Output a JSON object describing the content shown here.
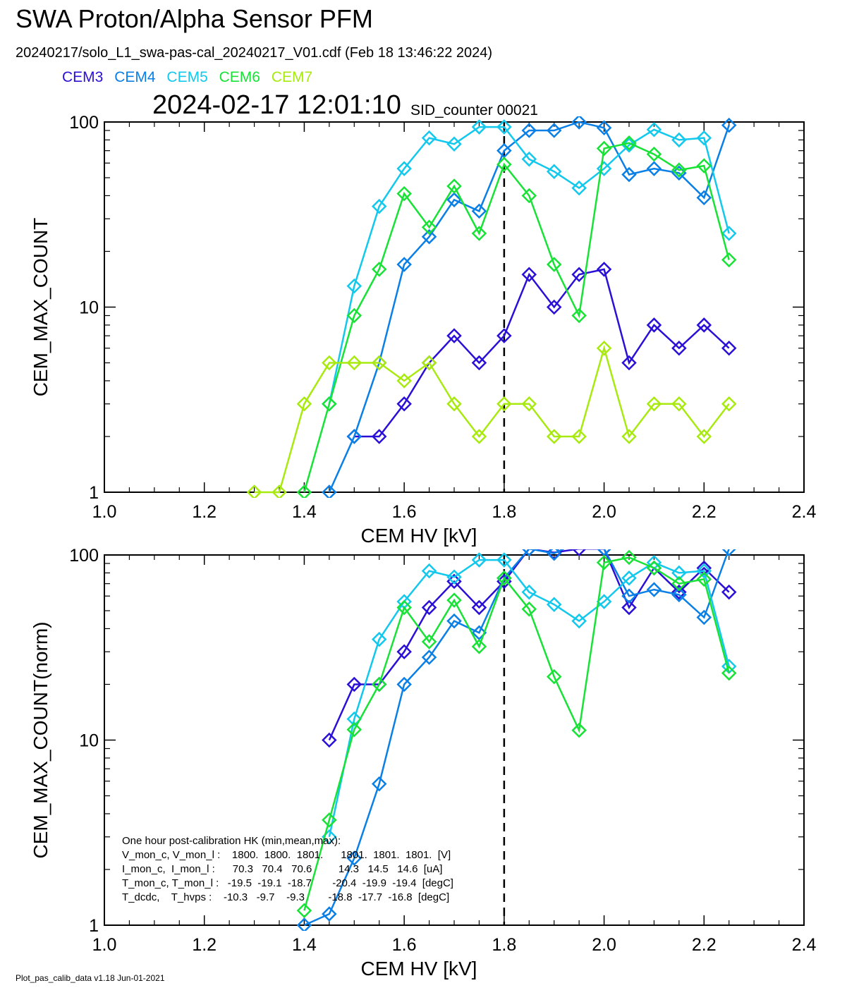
{
  "header": {
    "title": "SWA Proton/Alpha Sensor PFM",
    "subtitle": "20240217/solo_L1_swa-pas-cal_20240217_V01.cdf  (Feb 18 13:46:22 2024)",
    "datetime": "2024-02-17 12:01:10",
    "sid_counter": "SID_counter 00021"
  },
  "legend": [
    {
      "name": "CEM3",
      "color": "#2a10d6"
    },
    {
      "name": "CEM4",
      "color": "#0a7fe6"
    },
    {
      "name": "CEM5",
      "color": "#12c8ec"
    },
    {
      "name": "CEM6",
      "color": "#18e236"
    },
    {
      "name": "CEM7",
      "color": "#a8ea10"
    }
  ],
  "hk_box": {
    "line1": "One hour post-calibration HK (min,mean,max):",
    "line2": "V_mon_c, V_mon_l :    1800.  1800.  1801.      1801.  1801.  1801.  [V]",
    "line3": "I_mon_c,  I_mon_l :      70.3   70.4   70.6         14.3   14.5   14.6  [uA]",
    "line4": "T_mon_c, T_mon_l :   -19.5  -19.1  -18.7       -20.4  -19.9  -19.4  [degC]",
    "line5": "T_dcdc,    T_hvps :    -10.3   -9.7    -9.3        -18.8  -17.7  -16.8  [degC]"
  },
  "footer": "Plot_pas_calib_data v1.18 Jun-01-2021",
  "chart_data": [
    {
      "type": "line",
      "ylabel": "CEM_MAX_COUNT",
      "xlabel": "CEM HV [kV]",
      "xlim": [
        1.0,
        2.4
      ],
      "ylim": [
        1,
        100
      ],
      "yscale": "log",
      "xticks": [
        "1.0",
        "1.2",
        "1.4",
        "1.6",
        "1.8",
        "2.0",
        "2.2",
        "2.4"
      ],
      "yticks": [
        "1",
        "10",
        "100"
      ],
      "vline": 1.8,
      "series": [
        {
          "name": "CEM3",
          "color": "#2a10d6",
          "x": [
            1.5,
            1.55,
            1.6,
            1.65,
            1.7,
            1.75,
            1.8,
            1.85,
            1.9,
            1.95,
            2.0,
            2.05,
            2.1,
            2.15,
            2.2,
            2.25
          ],
          "values": [
            2,
            2,
            3,
            5,
            7,
            5,
            7,
            15,
            10,
            15,
            16,
            5,
            8,
            6,
            8,
            6
          ]
        },
        {
          "name": "CEM4",
          "color": "#0a7fe6",
          "x": [
            1.45,
            1.5,
            1.55,
            1.6,
            1.65,
            1.7,
            1.75,
            1.8,
            1.85,
            1.9,
            1.95,
            2.0,
            2.05,
            2.1,
            2.15,
            2.2,
            2.25
          ],
          "values": [
            1,
            2,
            5,
            17,
            24,
            38,
            33,
            70,
            90,
            90,
            100,
            93,
            52,
            56,
            53,
            39,
            96
          ]
        },
        {
          "name": "CEM5",
          "color": "#12c8ec",
          "x": [
            1.45,
            1.5,
            1.55,
            1.6,
            1.65,
            1.7,
            1.75,
            1.8,
            1.85,
            1.9,
            1.95,
            2.0,
            2.05,
            2.1,
            2.15,
            2.2,
            2.25
          ],
          "values": [
            3,
            13,
            35,
            56,
            82,
            76,
            94,
            94,
            63,
            54,
            44,
            56,
            75,
            91,
            80,
            82,
            25
          ]
        },
        {
          "name": "CEM6",
          "color": "#18e236",
          "x": [
            1.4,
            1.45,
            1.5,
            1.55,
            1.6,
            1.65,
            1.7,
            1.75,
            1.8,
            1.85,
            1.9,
            1.95,
            2.0,
            2.05,
            2.1,
            2.15,
            2.2,
            2.25
          ],
          "values": [
            1,
            3,
            9,
            16,
            41,
            27,
            45,
            25,
            59,
            40,
            17,
            9,
            72,
            77,
            67,
            55,
            58,
            18
          ]
        },
        {
          "name": "CEM7",
          "color": "#a8ea10",
          "x": [
            1.3,
            1.35,
            1.4,
            1.45,
            1.5,
            1.55,
            1.6,
            1.65,
            1.7,
            1.75,
            1.8,
            1.85,
            1.9,
            1.95,
            2.0,
            2.05,
            2.1,
            2.15,
            2.2,
            2.25
          ],
          "values": [
            1,
            1,
            3,
            5,
            5,
            5,
            4,
            5,
            3,
            2,
            3,
            3,
            2,
            2,
            6,
            2,
            3,
            3,
            2,
            3
          ]
        }
      ]
    },
    {
      "type": "line",
      "ylabel": "CEM_MAX_COUNT(norm)",
      "xlabel": "CEM HV [kV]",
      "xlim": [
        1.0,
        2.4
      ],
      "ylim": [
        1,
        100
      ],
      "yscale": "log",
      "xticks": [
        "1.0",
        "1.2",
        "1.4",
        "1.6",
        "1.8",
        "2.0",
        "2.2",
        "2.4"
      ],
      "yticks": [
        "1",
        "10",
        "100"
      ],
      "vline": 1.8,
      "series": [
        {
          "name": "CEM3",
          "color": "#2a10d6",
          "x": [
            1.45,
            1.5,
            1.55,
            1.6,
            1.65,
            1.7,
            1.75,
            1.8,
            1.85,
            1.9,
            1.95,
            2.0,
            2.05,
            2.1,
            2.15,
            2.2,
            2.25
          ],
          "values": [
            10,
            20,
            20,
            30,
            52,
            72,
            52,
            72,
            108,
            103,
            108,
            108,
            52,
            85,
            63,
            85,
            63
          ]
        },
        {
          "name": "CEM4",
          "color": "#0a7fe6",
          "x": [
            1.4,
            1.45,
            1.5,
            1.55,
            1.6,
            1.65,
            1.7,
            1.75,
            1.8,
            1.85,
            1.9,
            1.95,
            2.0,
            2.05,
            2.1,
            2.15,
            2.2,
            2.25
          ],
          "values": [
            1,
            1.15,
            2.3,
            5.8,
            20,
            28,
            44,
            38,
            75,
            108,
            102,
            118,
            108,
            60,
            65,
            61,
            46,
            108
          ]
        },
        {
          "name": "CEM5",
          "color": "#12c8ec",
          "x": [
            1.45,
            1.5,
            1.55,
            1.6,
            1.65,
            1.7,
            1.75,
            1.8,
            1.85,
            1.9,
            1.95,
            2.0,
            2.05,
            2.1,
            2.15,
            2.2,
            2.25
          ],
          "values": [
            3,
            13,
            35,
            56,
            82,
            76,
            94,
            94,
            63,
            54,
            44,
            56,
            75,
            91,
            80,
            82,
            25
          ]
        },
        {
          "name": "CEM6",
          "color": "#18e236",
          "x": [
            1.4,
            1.45,
            1.5,
            1.55,
            1.6,
            1.65,
            1.7,
            1.75,
            1.8,
            1.85,
            1.9,
            1.95,
            2.0,
            2.05,
            2.1,
            2.15,
            2.2,
            2.25
          ],
          "values": [
            1.2,
            3.7,
            11.4,
            20,
            52,
            34,
            57,
            32,
            75,
            51,
            22,
            11.3,
            91,
            97,
            85,
            70,
            74,
            23
          ]
        }
      ]
    }
  ]
}
